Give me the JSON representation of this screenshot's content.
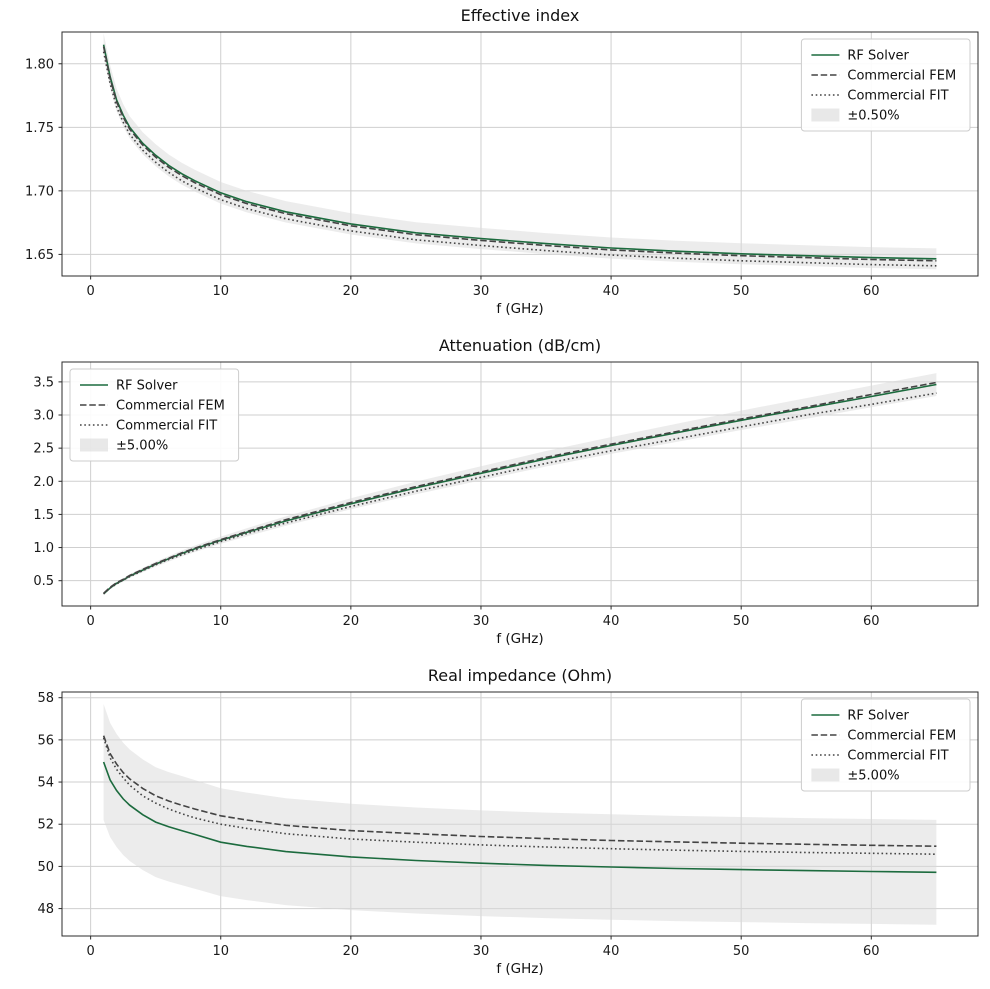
{
  "figure": {
    "background": "#ffffff",
    "grid_color": "#cfcfcf",
    "spine_color": "#2b2b2b",
    "text_color": "#1a1a1a",
    "band_fill": "#d9d9d9",
    "band_opacity": 0.5,
    "accent_green": "#1c6b3e",
    "gray_line": "#444444"
  },
  "chart_data": [
    {
      "type": "line",
      "title": "Effective index",
      "xlabel": "f (GHz)",
      "ylabel": "",
      "legend_position": "upper-right",
      "grid": true,
      "xlim": [
        -2.2,
        68.2
      ],
      "ylim": [
        1.633,
        1.825
      ],
      "xticks": {
        "values": [
          0,
          10,
          20,
          30,
          40,
          50,
          60
        ],
        "labels": [
          "0",
          "10",
          "20",
          "30",
          "40",
          "50",
          "60"
        ]
      },
      "yticks": {
        "values": [
          1.65,
          1.7,
          1.75,
          1.8
        ],
        "labels": [
          "1.65",
          "1.70",
          "1.75",
          "1.80"
        ]
      },
      "x": [
        1,
        1.5,
        2,
        2.5,
        3,
        4,
        5,
        6,
        7,
        8,
        10,
        12,
        15,
        20,
        25,
        30,
        35,
        40,
        45,
        50,
        55,
        60,
        65
      ],
      "series": [
        {
          "name": "RF Solver",
          "style": "solid",
          "color": "#1c6b3e",
          "values": [
            1.815,
            1.79,
            1.7715,
            1.7595,
            1.75,
            1.7375,
            1.728,
            1.72,
            1.7135,
            1.708,
            1.6985,
            1.6915,
            1.6835,
            1.674,
            1.667,
            1.6625,
            1.6585,
            1.655,
            1.6525,
            1.6505,
            1.649,
            1.6475,
            1.6465
          ]
        },
        {
          "name": "Commercial FEM",
          "style": "dashed",
          "color": "#444444",
          "values": [
            1.8135,
            1.7885,
            1.77,
            1.758,
            1.7485,
            1.736,
            1.7265,
            1.7185,
            1.712,
            1.7065,
            1.697,
            1.69,
            1.682,
            1.6725,
            1.6655,
            1.661,
            1.657,
            1.6535,
            1.651,
            1.649,
            1.6475,
            1.646,
            1.645
          ]
        },
        {
          "name": "Commercial FIT",
          "style": "dotted",
          "color": "#444444",
          "values": [
            1.8095,
            1.7845,
            1.766,
            1.754,
            1.7445,
            1.732,
            1.7225,
            1.7145,
            1.708,
            1.7025,
            1.693,
            1.686,
            1.678,
            1.6685,
            1.6615,
            1.657,
            1.653,
            1.6495,
            1.647,
            1.645,
            1.6435,
            1.642,
            1.641
          ]
        }
      ],
      "band": {
        "label": "±0.50%",
        "percent": 0.5,
        "source": "RF Solver"
      }
    },
    {
      "type": "line",
      "title": "Attenuation (dB/cm)",
      "xlabel": "f (GHz)",
      "ylabel": "",
      "legend_position": "upper-left",
      "grid": true,
      "xlim": [
        -2.2,
        68.2
      ],
      "ylim": [
        0.118,
        3.8
      ],
      "xticks": {
        "values": [
          0,
          10,
          20,
          30,
          40,
          50,
          60
        ],
        "labels": [
          "0",
          "10",
          "20",
          "30",
          "40",
          "50",
          "60"
        ]
      },
      "yticks": {
        "values": [
          0.5,
          1.0,
          1.5,
          2.0,
          2.5,
          3.0,
          3.5
        ],
        "labels": [
          "0.5",
          "1.0",
          "1.5",
          "2.0",
          "2.5",
          "3.0",
          "3.5"
        ]
      },
      "x": [
        1,
        1.5,
        2,
        2.5,
        3,
        4,
        5,
        6,
        7,
        8,
        10,
        12,
        15,
        20,
        25,
        30,
        35,
        40,
        45,
        50,
        55,
        60,
        65
      ],
      "series": [
        {
          "name": "RF Solver",
          "style": "solid",
          "color": "#1c6b3e",
          "values": [
            0.3,
            0.39,
            0.46,
            0.51,
            0.57,
            0.66,
            0.75,
            0.83,
            0.91,
            0.98,
            1.11,
            1.23,
            1.4,
            1.66,
            1.9,
            2.12,
            2.34,
            2.54,
            2.73,
            2.92,
            3.1,
            3.28,
            3.46
          ]
        },
        {
          "name": "Commercial FEM",
          "style": "dashed",
          "color": "#444444",
          "values": [
            0.31,
            0.4,
            0.47,
            0.52,
            0.58,
            0.67,
            0.76,
            0.84,
            0.92,
            0.99,
            1.12,
            1.24,
            1.42,
            1.68,
            1.92,
            2.14,
            2.36,
            2.56,
            2.75,
            2.94,
            3.12,
            3.31,
            3.49
          ]
        },
        {
          "name": "Commercial FIT",
          "style": "dotted",
          "color": "#444444",
          "values": [
            0.3,
            0.39,
            0.45,
            0.51,
            0.56,
            0.65,
            0.74,
            0.82,
            0.89,
            0.96,
            1.09,
            1.21,
            1.37,
            1.62,
            1.85,
            2.06,
            2.27,
            2.46,
            2.64,
            2.82,
            3.0,
            3.16,
            3.33
          ]
        }
      ],
      "band": {
        "label": "±5.00%",
        "percent": 5.0,
        "source": "RF Solver"
      }
    },
    {
      "type": "line",
      "title": "Real impedance (Ohm)",
      "xlabel": "f (GHz)",
      "ylabel": "",
      "legend_position": "upper-right",
      "grid": true,
      "xlim": [
        -2.2,
        68.2
      ],
      "ylim": [
        46.7,
        58.27
      ],
      "xticks": {
        "values": [
          0,
          10,
          20,
          30,
          40,
          50,
          60
        ],
        "labels": [
          "0",
          "10",
          "20",
          "30",
          "40",
          "50",
          "60"
        ]
      },
      "yticks": {
        "values": [
          48,
          50,
          52,
          54,
          56,
          58
        ],
        "labels": [
          "48",
          "50",
          "52",
          "54",
          "56",
          "58"
        ]
      },
      "x": [
        1,
        1.5,
        2,
        2.5,
        3,
        4,
        5,
        6,
        7,
        8,
        10,
        12,
        15,
        20,
        25,
        30,
        35,
        40,
        45,
        50,
        55,
        60,
        65
      ],
      "series": [
        {
          "name": "RF Solver",
          "style": "solid",
          "color": "#1c6b3e",
          "values": [
            54.95,
            54.1,
            53.6,
            53.2,
            52.9,
            52.45,
            52.1,
            51.88,
            51.7,
            51.52,
            51.15,
            50.95,
            50.7,
            50.45,
            50.28,
            50.15,
            50.05,
            49.97,
            49.9,
            49.85,
            49.8,
            49.76,
            49.72
          ]
        },
        {
          "name": "Commercial FEM",
          "style": "dashed",
          "color": "#444444",
          "values": [
            56.2,
            55.35,
            54.85,
            54.45,
            54.15,
            53.7,
            53.35,
            53.1,
            52.9,
            52.72,
            52.4,
            52.2,
            51.95,
            51.7,
            51.55,
            51.42,
            51.32,
            51.23,
            51.16,
            51.1,
            51.05,
            51.0,
            50.96
          ]
        },
        {
          "name": "Commercial FIT",
          "style": "dotted",
          "color": "#444444",
          "values": [
            56.1,
            55.15,
            54.6,
            54.2,
            53.85,
            53.35,
            53.0,
            52.72,
            52.5,
            52.3,
            52.0,
            51.8,
            51.55,
            51.3,
            51.15,
            51.02,
            50.92,
            50.84,
            50.77,
            50.71,
            50.66,
            50.62,
            50.58
          ]
        }
      ],
      "band": {
        "label": "±5.00%",
        "percent": 5.0,
        "source": "RF Solver"
      }
    }
  ]
}
